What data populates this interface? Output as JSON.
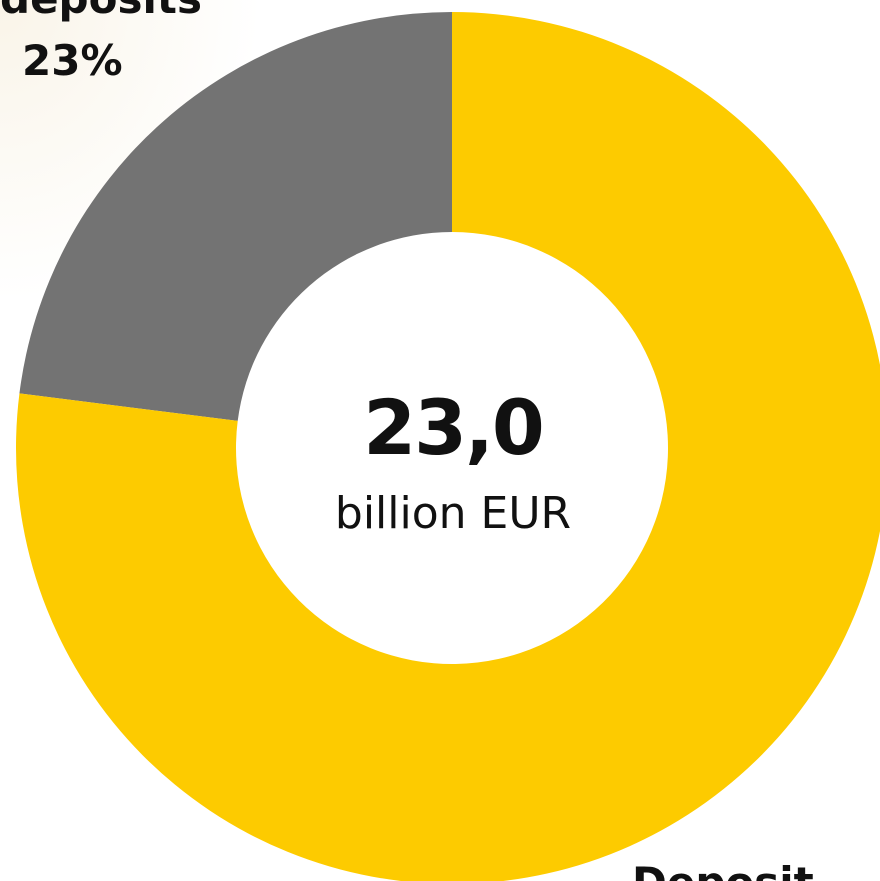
{
  "chart_data": {
    "type": "pie",
    "donut": true,
    "categories": [
      "deposits",
      "Deposit"
    ],
    "values": [
      23,
      77
    ],
    "labels": [
      {
        "name": "deposits",
        "value_text": "23%"
      },
      {
        "name": "Deposit",
        "value_text": ""
      }
    ],
    "colors": [
      "#737373",
      "#fdcb00"
    ],
    "start": "12 o'clock, counterclockwise for first slice",
    "legend": "none",
    "center": {
      "value": "23,0",
      "unit": "billion EUR"
    }
  }
}
